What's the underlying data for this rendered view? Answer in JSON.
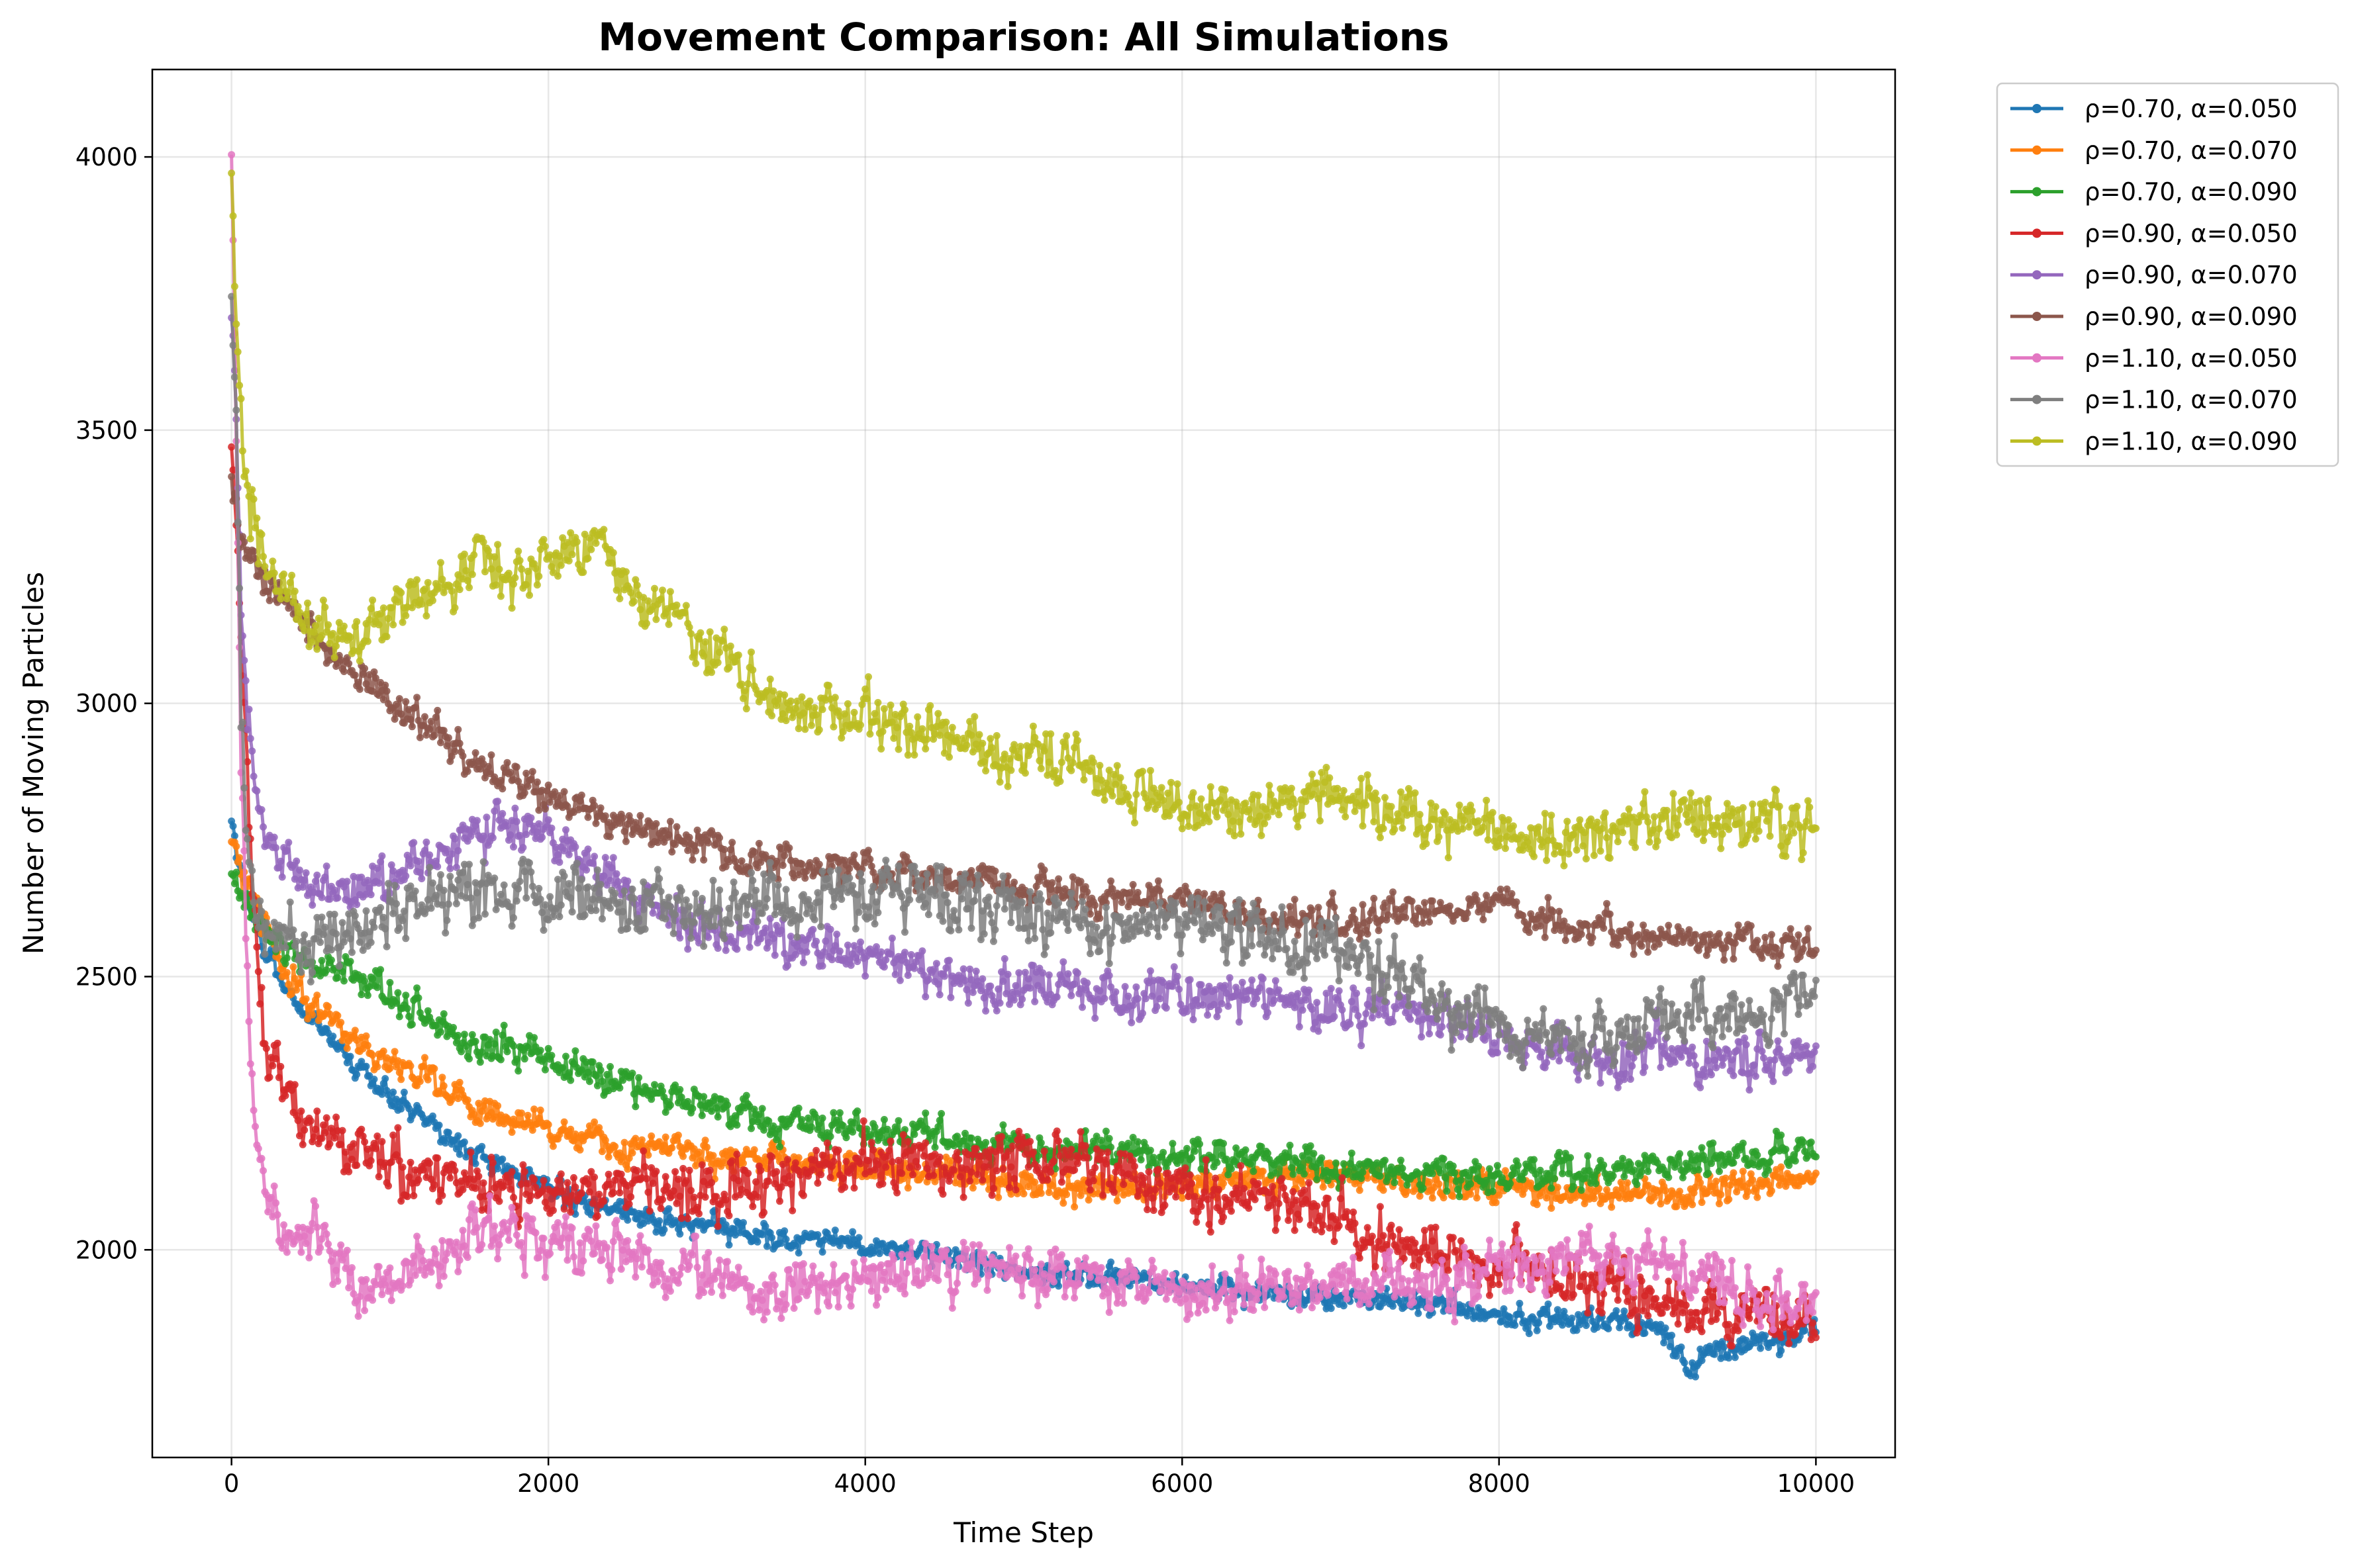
{
  "chart_data": {
    "type": "line",
    "title": "Movement Comparison: All Simulations",
    "xlabel": "Time Step",
    "ylabel": "Number of Moving Particles",
    "xlim": [
      -500,
      10500
    ],
    "ylim": [
      1620,
      4160
    ],
    "x_ticks": [
      0,
      2000,
      4000,
      6000,
      8000,
      10000
    ],
    "y_ticks": [
      2000,
      2500,
      3000,
      3500,
      4000
    ],
    "grid": true,
    "legend_position": "outside-top-right",
    "sampling": {
      "x_start": 0,
      "x_step": 10,
      "x_end": 10000
    },
    "series": [
      {
        "name": "ρ=0.70, α=0.050",
        "color": "#1f77b4",
        "anchors_x": [
          0,
          50,
          100,
          150,
          200,
          300,
          400,
          600,
          800,
          1000,
          1200,
          1500,
          1800,
          2200,
          2600,
          3000,
          3500,
          4000,
          4500,
          5000,
          5500,
          6000,
          6500,
          7000,
          7500,
          8000,
          8500,
          9000,
          9200,
          9500,
          10000
        ],
        "anchors_y": [
          2780,
          2700,
          2640,
          2600,
          2560,
          2510,
          2460,
          2390,
          2330,
          2290,
          2240,
          2180,
          2140,
          2090,
          2060,
          2040,
          2020,
          2010,
          1985,
          1960,
          1950,
          1935,
          1920,
          1915,
          1900,
          1880,
          1870,
          1860,
          1790,
          1820,
          1850
        ],
        "noise": 18
      },
      {
        "name": "ρ=0.70, α=0.070",
        "color": "#ff7f0e",
        "anchors_x": [
          0,
          50,
          100,
          200,
          300,
          500,
          800,
          1000,
          1200,
          1500,
          2000,
          2500,
          3000,
          3500,
          4000,
          4500,
          5000,
          5500,
          6000,
          6500,
          7000,
          7500,
          8000,
          8500,
          9000,
          9500,
          10000
        ],
        "anchors_y": [
          2760,
          2700,
          2650,
          2600,
          2520,
          2450,
          2380,
          2340,
          2310,
          2270,
          2220,
          2190,
          2170,
          2160,
          2150,
          2140,
          2120,
          2110,
          2120,
          2130,
          2140,
          2120,
          2115,
          2110,
          2100,
          2110,
          2130
        ],
        "noise": 24
      },
      {
        "name": "ρ=0.70, α=0.090",
        "color": "#2ca02c",
        "anchors_x": [
          0,
          50,
          100,
          200,
          400,
          700,
          1000,
          1300,
          1600,
          2000,
          2500,
          3000,
          3500,
          4000,
          4500,
          5000,
          5500,
          6000,
          6500,
          7000,
          7500,
          8000,
          8500,
          9000,
          9500,
          10000
        ],
        "anchors_y": [
          2690,
          2650,
          2630,
          2590,
          2540,
          2500,
          2460,
          2410,
          2380,
          2350,
          2300,
          2260,
          2230,
          2220,
          2200,
          2190,
          2180,
          2170,
          2160,
          2140,
          2140,
          2130,
          2140,
          2160,
          2170,
          2180
        ],
        "noise": 25
      },
      {
        "name": "ρ=0.90, α=0.050",
        "color": "#d62728",
        "anchors_x": [
          0,
          50,
          100,
          150,
          200,
          300,
          500,
          800,
          1000,
          1300,
          1700,
          2000,
          2500,
          3000,
          3500,
          4000,
          4500,
          5000,
          5500,
          6000,
          6500,
          7000,
          7500,
          8000,
          8500,
          9000,
          9500,
          10000
        ],
        "anchors_y": [
          3450,
          3200,
          2850,
          2600,
          2400,
          2280,
          2210,
          2170,
          2140,
          2140,
          2120,
          2110,
          2120,
          2100,
          2140,
          2160,
          2160,
          2160,
          2150,
          2110,
          2090,
          2050,
          2000,
          1970,
          1940,
          1900,
          1880,
          1870
        ],
        "noise": 45
      },
      {
        "name": "ρ=0.90, α=0.070",
        "color": "#9467bd",
        "anchors_x": [
          0,
          30,
          60,
          100,
          150,
          200,
          300,
          500,
          700,
          1000,
          1300,
          1500,
          1800,
          2000,
          2300,
          2600,
          3000,
          3500,
          4000,
          4500,
          5000,
          5500,
          6000,
          6500,
          7000,
          7500,
          8000,
          8500,
          9000,
          9500,
          10000
        ],
        "anchors_y": [
          3700,
          3550,
          3200,
          3000,
          2850,
          2780,
          2720,
          2680,
          2660,
          2670,
          2720,
          2760,
          2780,
          2760,
          2700,
          2640,
          2600,
          2570,
          2540,
          2500,
          2480,
          2470,
          2470,
          2450,
          2440,
          2420,
          2380,
          2350,
          2360,
          2350,
          2340
        ],
        "noise": 38
      },
      {
        "name": "ρ=0.90, α=0.090",
        "color": "#8c564b",
        "anchors_x": [
          0,
          50,
          100,
          200,
          400,
          600,
          800,
          1000,
          1300,
          1600,
          2000,
          2500,
          3000,
          3500,
          4000,
          4500,
          5000,
          5500,
          6000,
          6500,
          7000,
          7500,
          8000,
          8500,
          9000,
          9500,
          10000
        ],
        "anchors_y": [
          3400,
          3320,
          3280,
          3220,
          3160,
          3100,
          3050,
          3000,
          2950,
          2880,
          2830,
          2780,
          2730,
          2710,
          2700,
          2680,
          2660,
          2650,
          2630,
          2610,
          2600,
          2620,
          2630,
          2590,
          2570,
          2560,
          2550
        ],
        "noise": 26
      },
      {
        "name": "ρ=1.10, α=0.050",
        "color": "#e377c2",
        "anchors_x": [
          0,
          30,
          60,
          100,
          150,
          200,
          300,
          500,
          700,
          900,
          1100,
          1400,
          1700,
          2000,
          2500,
          3000,
          3500,
          4000,
          4500,
          5000,
          5500,
          6000,
          6500,
          7000,
          7500,
          8000,
          8500,
          9000,
          9500,
          10000
        ],
        "anchors_y": [
          4040,
          3500,
          2900,
          2500,
          2250,
          2120,
          2050,
          2030,
          1960,
          1920,
          1960,
          2010,
          2040,
          2010,
          1990,
          1940,
          1910,
          1950,
          1970,
          1960,
          1950,
          1920,
          1930,
          1940,
          1950,
          1960,
          1990,
          1980,
          1930,
          1900
        ],
        "noise": 42
      },
      {
        "name": "ρ=1.10, α=0.070",
        "color": "#7f7f7f",
        "anchors_x": [
          0,
          30,
          60,
          100,
          150,
          200,
          300,
          500,
          800,
          1000,
          1300,
          1600,
          2000,
          2500,
          3000,
          3500,
          4000,
          4500,
          5000,
          5500,
          6000,
          6500,
          7000,
          7500,
          8000,
          8500,
          9000,
          9500,
          10000
        ],
        "anchors_y": [
          3700,
          3500,
          3000,
          2750,
          2650,
          2600,
          2570,
          2560,
          2580,
          2620,
          2640,
          2660,
          2650,
          2630,
          2610,
          2640,
          2660,
          2640,
          2610,
          2590,
          2600,
          2580,
          2540,
          2480,
          2400,
          2380,
          2420,
          2440,
          2460
        ],
        "noise": 48
      },
      {
        "name": "ρ=1.10, α=0.090",
        "color": "#bcbd22",
        "anchors_x": [
          0,
          20,
          40,
          80,
          150,
          250,
          400,
          600,
          800,
          1000,
          1300,
          1600,
          1800,
          2000,
          2300,
          2600,
          3000,
          3500,
          4000,
          4500,
          5000,
          5500,
          6000,
          6500,
          7000,
          7500,
          8000,
          8500,
          9000,
          9500,
          10000
        ],
        "anchors_y": [
          3980,
          3800,
          3650,
          3450,
          3300,
          3250,
          3180,
          3120,
          3100,
          3180,
          3200,
          3270,
          3220,
          3270,
          3280,
          3200,
          3100,
          3000,
          2970,
          2940,
          2900,
          2860,
          2800,
          2810,
          2840,
          2780,
          2760,
          2740,
          2800,
          2770,
          2760
        ],
        "noise": 42
      }
    ]
  }
}
